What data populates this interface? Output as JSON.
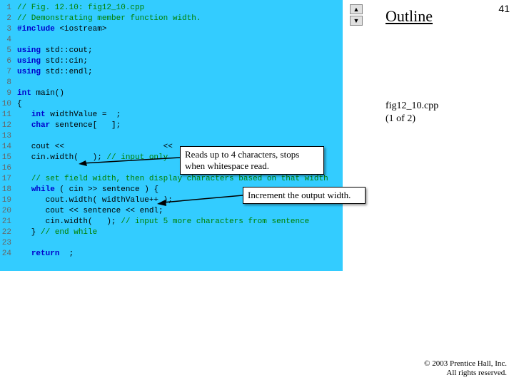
{
  "pageNumber": "41",
  "outlineTitle": "Outline",
  "figInfo": {
    "name": "fig12_10.cpp",
    "part": "(1 of 2)"
  },
  "callouts": {
    "c1": "Reads up to 4 characters, stops when whitespace read.",
    "c2": "Increment the output width."
  },
  "copyright": {
    "line1": "© 2003 Prentice Hall, Inc.",
    "line2": "All rights reserved."
  },
  "code": {
    "lines": [
      {
        "n": "1",
        "segs": [
          {
            "c": "comment",
            "t": "// Fig. 12.10: fig12_10.cpp"
          }
        ]
      },
      {
        "n": "2",
        "segs": [
          {
            "c": "comment",
            "t": "// Demonstrating member function width."
          }
        ]
      },
      {
        "n": "3",
        "segs": [
          {
            "c": "preproc",
            "t": "#include "
          },
          {
            "c": "plain",
            "t": "<iostream>"
          }
        ]
      },
      {
        "n": "4",
        "segs": [
          {
            "c": "plain",
            "t": ""
          }
        ]
      },
      {
        "n": "5",
        "segs": [
          {
            "c": "keyword",
            "t": "using"
          },
          {
            "c": "plain",
            "t": " std::cout;"
          }
        ]
      },
      {
        "n": "6",
        "segs": [
          {
            "c": "keyword",
            "t": "using"
          },
          {
            "c": "plain",
            "t": " std::cin;"
          }
        ]
      },
      {
        "n": "7",
        "segs": [
          {
            "c": "keyword",
            "t": "using"
          },
          {
            "c": "plain",
            "t": " std::endl;"
          }
        ]
      },
      {
        "n": "8",
        "segs": [
          {
            "c": "plain",
            "t": ""
          }
        ]
      },
      {
        "n": "9",
        "segs": [
          {
            "c": "keyword",
            "t": "int "
          },
          {
            "c": "plain",
            "t": "main()"
          }
        ]
      },
      {
        "n": "10",
        "segs": [
          {
            "c": "plain",
            "t": "{"
          }
        ]
      },
      {
        "n": "11",
        "segs": [
          {
            "c": "plain",
            "t": "   "
          },
          {
            "c": "keyword",
            "t": "int "
          },
          {
            "c": "plain",
            "t": "widthValue =  ;"
          }
        ]
      },
      {
        "n": "12",
        "segs": [
          {
            "c": "plain",
            "t": "   "
          },
          {
            "c": "keyword",
            "t": "char "
          },
          {
            "c": "plain",
            "t": "sentence[   ];"
          }
        ]
      },
      {
        "n": "13",
        "segs": [
          {
            "c": "plain",
            "t": ""
          }
        ]
      },
      {
        "n": "14",
        "segs": [
          {
            "c": "plain",
            "t": "   cout <<                     << "
          }
        ]
      },
      {
        "n": "15",
        "segs": [
          {
            "c": "plain",
            "t": "   cin.width(   ); "
          },
          {
            "c": "comment",
            "t": "// input only "
          }
        ]
      },
      {
        "n": "16",
        "segs": [
          {
            "c": "plain",
            "t": ""
          }
        ]
      },
      {
        "n": "17",
        "segs": [
          {
            "c": "plain",
            "t": "   "
          },
          {
            "c": "comment",
            "t": "// set field width, then display characters based on that width"
          }
        ]
      },
      {
        "n": "18",
        "segs": [
          {
            "c": "plain",
            "t": "   "
          },
          {
            "c": "keyword",
            "t": "while"
          },
          {
            "c": "plain",
            "t": " ( cin >> sentence ) {"
          }
        ]
      },
      {
        "n": "19",
        "segs": [
          {
            "c": "plain",
            "t": "      cout.width( widthValue++ );"
          }
        ]
      },
      {
        "n": "20",
        "segs": [
          {
            "c": "plain",
            "t": "      cout << sentence << endl;"
          }
        ]
      },
      {
        "n": "21",
        "segs": [
          {
            "c": "plain",
            "t": "      cin.width(   ); "
          },
          {
            "c": "comment",
            "t": "// input 5 more characters from sentence"
          }
        ]
      },
      {
        "n": "22",
        "segs": [
          {
            "c": "plain",
            "t": "   } "
          },
          {
            "c": "comment",
            "t": "// end while"
          }
        ]
      },
      {
        "n": "23",
        "segs": [
          {
            "c": "plain",
            "t": ""
          }
        ]
      },
      {
        "n": "24",
        "segs": [
          {
            "c": "plain",
            "t": "   "
          },
          {
            "c": "keyword",
            "t": "return"
          },
          {
            "c": "plain",
            "t": "  ;"
          }
        ]
      }
    ]
  }
}
